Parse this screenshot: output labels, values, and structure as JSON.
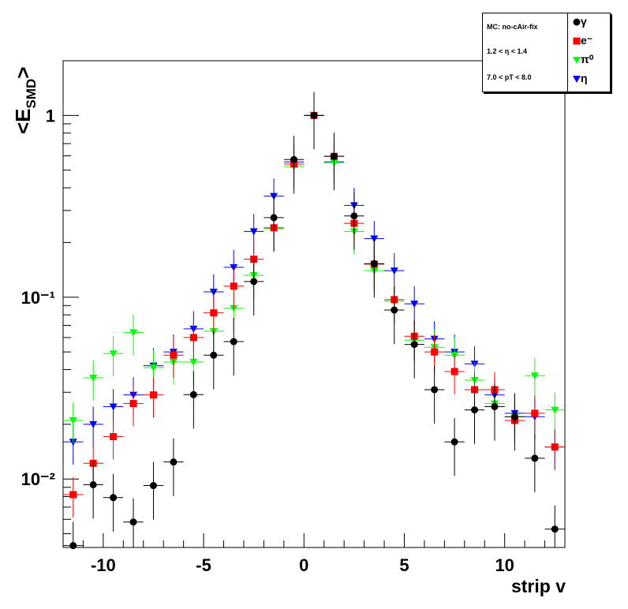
{
  "chart_data": {
    "type": "scatter",
    "ylabel": "<E_SMD>",
    "xlabel": "strip v",
    "yscale": "log",
    "xlim": [
      -12,
      13
    ],
    "ylim": [
      0.0042,
      2.0
    ],
    "x_ticks": [
      "-10",
      "-5",
      "0",
      "5",
      "10"
    ],
    "y_ticks": [
      "10⁻²",
      "10⁻¹",
      "1"
    ],
    "info_lines": [
      "MC: no-cAir-fix",
      "1.2 < η < 1.4",
      "7.0 < pT < 8.0"
    ],
    "series": [
      {
        "name": "γ",
        "marker": "circle",
        "color": "#000000",
        "x": [
          -11.5,
          -10.5,
          -9.5,
          -8.5,
          -7.5,
          -6.5,
          -5.5,
          -4.5,
          -3.5,
          -2.5,
          -1.5,
          -0.5,
          0.5,
          1.5,
          2.5,
          3.5,
          4.5,
          5.5,
          6.5,
          7.5,
          8.5,
          9.5,
          10.5,
          11.5,
          12.5
        ],
        "y": [
          0.0043,
          0.0093,
          0.0079,
          0.0058,
          0.0092,
          0.0124,
          0.0291,
          0.048,
          0.057,
          0.122,
          0.274,
          0.572,
          1.0,
          0.596,
          0.28,
          0.153,
          0.085,
          0.055,
          0.031,
          0.016,
          0.024,
          0.025,
          0.022,
          0.013,
          0.0053
        ]
      },
      {
        "name": "e⁻",
        "marker": "square",
        "color": "#ff0000",
        "x": [
          -11.5,
          -10.5,
          -9.5,
          -8.5,
          -7.5,
          -6.5,
          -5.5,
          -4.5,
          -3.5,
          -2.5,
          -1.5,
          -0.5,
          0.5,
          1.5,
          2.5,
          3.5,
          4.5,
          5.5,
          6.5,
          7.5,
          8.5,
          9.5,
          10.5,
          11.5,
          12.5
        ],
        "y": [
          0.0082,
          0.0122,
          0.0171,
          0.026,
          0.029,
          0.048,
          0.06,
          0.082,
          0.115,
          0.162,
          0.241,
          0.54,
          1.0,
          0.596,
          0.255,
          0.152,
          0.097,
          0.061,
          0.05,
          0.039,
          0.031,
          0.031,
          0.021,
          0.023,
          0.015
        ]
      },
      {
        "name": "π⁰",
        "marker": "triangle-down",
        "color": "#00ff00",
        "x": [
          -11.5,
          -10.5,
          -9.5,
          -8.5,
          -7.5,
          -6.5,
          -5.5,
          -4.5,
          -3.5,
          -2.5,
          -1.5,
          -0.5,
          0.5,
          1.5,
          2.5,
          3.5,
          4.5,
          5.5,
          6.5,
          7.5,
          8.5,
          9.5,
          10.5,
          11.5,
          12.5
        ],
        "y": [
          0.021,
          0.036,
          0.049,
          0.064,
          0.041,
          0.044,
          0.044,
          0.065,
          0.087,
          0.132,
          0.238,
          0.525,
          1.0,
          0.55,
          0.23,
          0.14,
          0.095,
          0.058,
          0.053,
          0.048,
          0.035,
          0.026,
          0.022,
          0.037,
          0.024
        ]
      },
      {
        "name": "η",
        "marker": "triangle-down",
        "color": "#0000ff",
        "x": [
          -11.5,
          -10.5,
          -9.5,
          -8.5,
          -7.5,
          -6.5,
          -5.5,
          -4.5,
          -3.5,
          -2.5,
          -1.5,
          -0.5,
          0.5,
          1.5,
          2.5,
          3.5,
          4.5,
          5.5,
          6.5,
          7.5,
          8.5,
          9.5,
          10.5,
          11.5,
          12.5
        ],
        "y": [
          0.016,
          0.02,
          0.025,
          0.029,
          0.042,
          0.05,
          0.067,
          0.107,
          0.146,
          0.23,
          0.36,
          0.555,
          1.0,
          0.555,
          0.32,
          0.21,
          0.14,
          0.092,
          0.059,
          0.05,
          0.043,
          0.029,
          0.023,
          0.022,
          0.015
        ]
      }
    ]
  }
}
